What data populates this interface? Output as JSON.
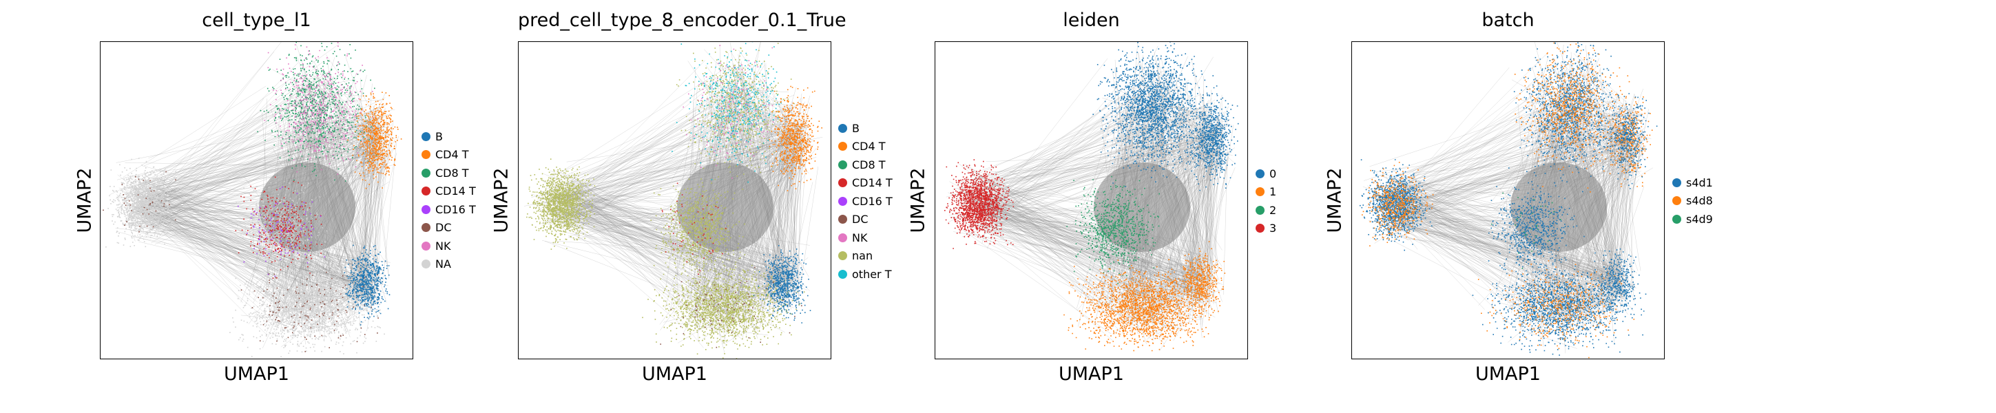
{
  "palette": {
    "blue": "#1f77b4",
    "orange": "#ff7f0e",
    "green": "#279e68",
    "red": "#d62728",
    "purple": "#aa40fc",
    "brown": "#8c564b",
    "pink": "#e377c2",
    "grey": "#d3d3d3",
    "olive": "#b5bd61",
    "cyan": "#17becf",
    "edge": "#8a8a8a"
  },
  "chart_data": [
    {
      "type": "scatter",
      "title": "cell_type_l1",
      "xlabel": "UMAP1",
      "ylabel": "UMAP2",
      "legend_position": "right",
      "legend": [
        {
          "label": "B",
          "color": "#1f77b4"
        },
        {
          "label": "CD4 T",
          "color": "#ff7f0e"
        },
        {
          "label": "CD8 T",
          "color": "#279e68"
        },
        {
          "label": "CD14 T",
          "color": "#d62728"
        },
        {
          "label": "CD16 T",
          "color": "#aa40fc"
        },
        {
          "label": "DC",
          "color": "#8c564b"
        },
        {
          "label": "NK",
          "color": "#e377c2"
        },
        {
          "label": "NA",
          "color": "#d3d3d3"
        }
      ]
    },
    {
      "type": "scatter",
      "title": "pred_cell_type_8_encoder_0.1_True",
      "xlabel": "UMAP1",
      "ylabel": "UMAP2",
      "legend_position": "right",
      "legend": [
        {
          "label": "B",
          "color": "#1f77b4"
        },
        {
          "label": "CD4 T",
          "color": "#ff7f0e"
        },
        {
          "label": "CD8 T",
          "color": "#279e68"
        },
        {
          "label": "CD14 T",
          "color": "#d62728"
        },
        {
          "label": "CD16 T",
          "color": "#aa40fc"
        },
        {
          "label": "DC",
          "color": "#8c564b"
        },
        {
          "label": "NK",
          "color": "#e377c2"
        },
        {
          "label": "nan",
          "color": "#b5bd61"
        },
        {
          "label": "other T",
          "color": "#17becf"
        }
      ]
    },
    {
      "type": "scatter",
      "title": "leiden",
      "xlabel": "UMAP1",
      "ylabel": "UMAP2",
      "legend_position": "right",
      "legend": [
        {
          "label": "0",
          "color": "#1f77b4"
        },
        {
          "label": "1",
          "color": "#ff7f0e"
        },
        {
          "label": "2",
          "color": "#279e68"
        },
        {
          "label": "3",
          "color": "#d62728"
        }
      ]
    },
    {
      "type": "scatter",
      "title": "batch",
      "xlabel": "UMAP1",
      "ylabel": "UMAP2",
      "legend_position": "right",
      "legend": [
        {
          "label": "s4d1",
          "color": "#1f77b4"
        },
        {
          "label": "s4d8",
          "color": "#ff7f0e"
        },
        {
          "label": "s4d9",
          "color": "#279e68"
        }
      ]
    }
  ]
}
